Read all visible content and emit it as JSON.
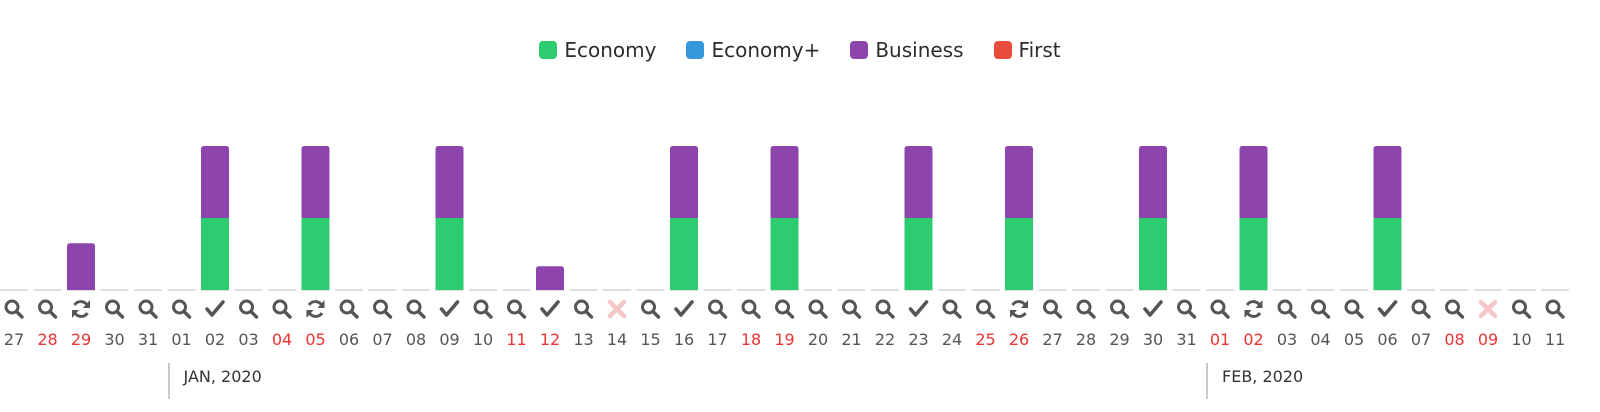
{
  "colors": {
    "economy": "#2ecc71",
    "economy_plus": "#3498db",
    "business": "#8e44ad",
    "first": "#e74c3c",
    "weekend_text": "#ee3333",
    "normal_text": "#555555",
    "icon": "#555555",
    "unavailable_icon": "#f5c6c6"
  },
  "legend": [
    {
      "label": "Economy",
      "color": "#2ecc71"
    },
    {
      "label": "Economy+",
      "color": "#3498db"
    },
    {
      "label": "Business",
      "color": "#8e44ad"
    },
    {
      "label": "First",
      "color": "#e74c3c"
    }
  ],
  "months": [
    {
      "label": "JAN, 2020",
      "start_index": 5
    },
    {
      "label": "FEB, 2020",
      "start_index": 36
    }
  ],
  "chart_data": {
    "type": "bar",
    "stacked": true,
    "title": "",
    "xlabel": "",
    "ylabel": "",
    "ylim": [
      0,
      2
    ],
    "grid": false,
    "legend_position": "top-center",
    "categories": [
      "27",
      "28",
      "29",
      "30",
      "31",
      "01",
      "02",
      "03",
      "04",
      "05",
      "06",
      "07",
      "08",
      "09",
      "10",
      "11",
      "12",
      "13",
      "14",
      "15",
      "16",
      "17",
      "18",
      "19",
      "20",
      "21",
      "22",
      "23",
      "24",
      "25",
      "26",
      "27",
      "28",
      "29",
      "30",
      "31",
      "01",
      "02",
      "03",
      "04",
      "05",
      "06",
      "07",
      "08",
      "09",
      "10",
      "11"
    ],
    "weekend": [
      false,
      true,
      true,
      false,
      false,
      false,
      false,
      false,
      true,
      true,
      false,
      false,
      false,
      false,
      false,
      true,
      true,
      false,
      false,
      false,
      false,
      false,
      true,
      true,
      false,
      false,
      false,
      false,
      false,
      true,
      true,
      false,
      false,
      false,
      false,
      false,
      true,
      true,
      false,
      false,
      false,
      false,
      false,
      true,
      true,
      false,
      false
    ],
    "status_icons": [
      "search",
      "search",
      "refresh",
      "search",
      "search",
      "search",
      "check",
      "search",
      "search",
      "refresh",
      "search",
      "search",
      "search",
      "check",
      "search",
      "search",
      "check",
      "search",
      "cross",
      "search",
      "check",
      "search",
      "search",
      "search",
      "search",
      "search",
      "search",
      "check",
      "search",
      "search",
      "refresh",
      "search",
      "search",
      "search",
      "check",
      "search",
      "search",
      "refresh",
      "search",
      "search",
      "search",
      "check",
      "search",
      "search",
      "cross",
      "search",
      "search"
    ],
    "series": [
      {
        "name": "Economy",
        "values": [
          0,
          0,
          0,
          0,
          0,
          0,
          1,
          0,
          0,
          1,
          0,
          0,
          0,
          1,
          0,
          0,
          0,
          0,
          0,
          0,
          1,
          0,
          0,
          1,
          0,
          0,
          0,
          1,
          0,
          0,
          1,
          0,
          0,
          0,
          1,
          0,
          0,
          1,
          0,
          0,
          0,
          1,
          0,
          0,
          0,
          0,
          0
        ]
      },
      {
        "name": "Economy+",
        "values": [
          0,
          0,
          0,
          0,
          0,
          0,
          0,
          0,
          0,
          0,
          0,
          0,
          0,
          0,
          0,
          0,
          0,
          0,
          0,
          0,
          0,
          0,
          0,
          0,
          0,
          0,
          0,
          0,
          0,
          0,
          0,
          0,
          0,
          0,
          0,
          0,
          0,
          0,
          0,
          0,
          0,
          0,
          0,
          0,
          0,
          0,
          0
        ]
      },
      {
        "name": "Business",
        "values": [
          0,
          0,
          0.65,
          0,
          0,
          0,
          1,
          0,
          0,
          1,
          0,
          0,
          0,
          1,
          0,
          0,
          0.33,
          0,
          0,
          0,
          1,
          0,
          0,
          1,
          0,
          0,
          0,
          1,
          0,
          0,
          1,
          0,
          0,
          0,
          1,
          0,
          0,
          1,
          0,
          0,
          0,
          1,
          0,
          0,
          0,
          0,
          0
        ]
      },
      {
        "name": "First",
        "values": [
          0,
          0,
          0,
          0,
          0,
          0,
          0,
          0,
          0,
          0,
          0,
          0,
          0,
          0,
          0,
          0,
          0,
          0,
          0,
          0,
          0,
          0,
          0,
          0,
          0,
          0,
          0,
          0,
          0,
          0,
          0,
          0,
          0,
          0,
          0,
          0,
          0,
          0,
          0,
          0,
          0,
          0,
          0,
          0,
          0,
          0,
          0
        ]
      }
    ]
  }
}
